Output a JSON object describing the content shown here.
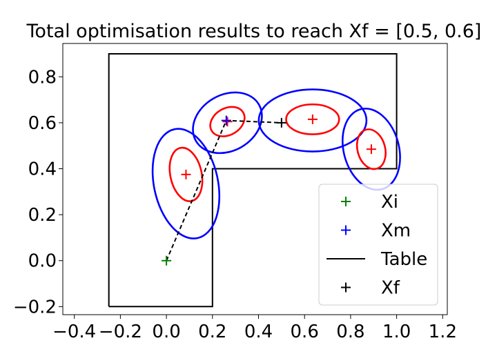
{
  "chart_data": {
    "type": "scatter",
    "title": "Total optimisation results to reach Xf = [0.5, 0.6]",
    "xlabel": "",
    "ylabel": "",
    "xlim": [
      -0.45,
      1.22
    ],
    "ylim": [
      -0.235,
      0.945
    ],
    "grid": false,
    "x_ticks": [
      -0.4,
      -0.2,
      0.0,
      0.2,
      0.4,
      0.6,
      0.8,
      1.0,
      1.2
    ],
    "x_tick_labels": [
      "−0.4",
      "−0.2",
      "0.0",
      "0.2",
      "0.4",
      "0.6",
      "0.8",
      "1.0",
      "1.2"
    ],
    "y_ticks": [
      -0.2,
      0.0,
      0.2,
      0.4,
      0.6,
      0.8
    ],
    "y_tick_labels": [
      "−0.2",
      "0.0",
      "0.2",
      "0.4",
      "0.6",
      "0.8"
    ],
    "legend": {
      "placement": "lower-right",
      "entries": [
        {
          "label": "Xi",
          "marker": "plus",
          "color": "#008000"
        },
        {
          "label": "Xm",
          "marker": "plus",
          "color": "#0000ff"
        },
        {
          "label": "Table",
          "marker": "line",
          "color": "#000000"
        },
        {
          "label": "Xf",
          "marker": "plus",
          "color": "#000000"
        }
      ]
    },
    "table_outline": [
      [
        -0.25,
        -0.2
      ],
      [
        0.2,
        -0.2
      ],
      [
        0.2,
        0.4
      ],
      [
        1.0,
        0.4
      ],
      [
        1.0,
        0.9
      ],
      [
        -0.25,
        0.9
      ],
      [
        -0.25,
        -0.2
      ]
    ],
    "path": [
      [
        0.0,
        0.0
      ],
      [
        0.26,
        0.61
      ],
      [
        0.5,
        0.6
      ]
    ],
    "points": [
      {
        "series": "Xi",
        "x": 0.0,
        "y": 0.0,
        "color": "#008000"
      },
      {
        "series": "Xm",
        "x": 0.26,
        "y": 0.61,
        "color": "#0000ff"
      },
      {
        "series": "Xf",
        "x": 0.5,
        "y": 0.6,
        "color": "#000000"
      }
    ],
    "means": [
      {
        "x": 0.085,
        "y": 0.375
      },
      {
        "x": 0.265,
        "y": 0.605
      },
      {
        "x": 0.635,
        "y": 0.615
      },
      {
        "x": 0.89,
        "y": 0.485
      }
    ],
    "ellipses": [
      {
        "kind": "inner",
        "color": "#ff0000",
        "cx": 0.085,
        "cy": 0.375,
        "rx": 0.068,
        "ry": 0.118,
        "angle": -12
      },
      {
        "kind": "outer",
        "color": "#0000ff",
        "cx": 0.085,
        "cy": 0.335,
        "rx": 0.139,
        "ry": 0.242,
        "angle": -12
      },
      {
        "kind": "inner",
        "color": "#ff0000",
        "cx": 0.265,
        "cy": 0.605,
        "rx": 0.079,
        "ry": 0.058,
        "angle": -30
      },
      {
        "kind": "outer",
        "color": "#0000ff",
        "cx": 0.265,
        "cy": 0.6,
        "rx": 0.158,
        "ry": 0.122,
        "angle": -30
      },
      {
        "kind": "inner",
        "color": "#ff0000",
        "cx": 0.635,
        "cy": 0.615,
        "rx": 0.115,
        "ry": 0.065,
        "angle": 0
      },
      {
        "kind": "outer",
        "color": "#0000ff",
        "cx": 0.635,
        "cy": 0.61,
        "rx": 0.234,
        "ry": 0.135,
        "angle": 0
      },
      {
        "kind": "inner",
        "color": "#ff0000",
        "cx": 0.89,
        "cy": 0.485,
        "rx": 0.06,
        "ry": 0.088,
        "angle": -15
      },
      {
        "kind": "outer",
        "color": "#0000ff",
        "cx": 0.89,
        "cy": 0.485,
        "rx": 0.12,
        "ry": 0.18,
        "angle": -15
      }
    ]
  },
  "colors": {
    "inner_ellipse": "#ff0000",
    "outer_ellipse": "#0000ff",
    "mean_marker": "#ff0000",
    "table": "#000000",
    "path": "#000000",
    "legend_border": "#cccccc"
  }
}
